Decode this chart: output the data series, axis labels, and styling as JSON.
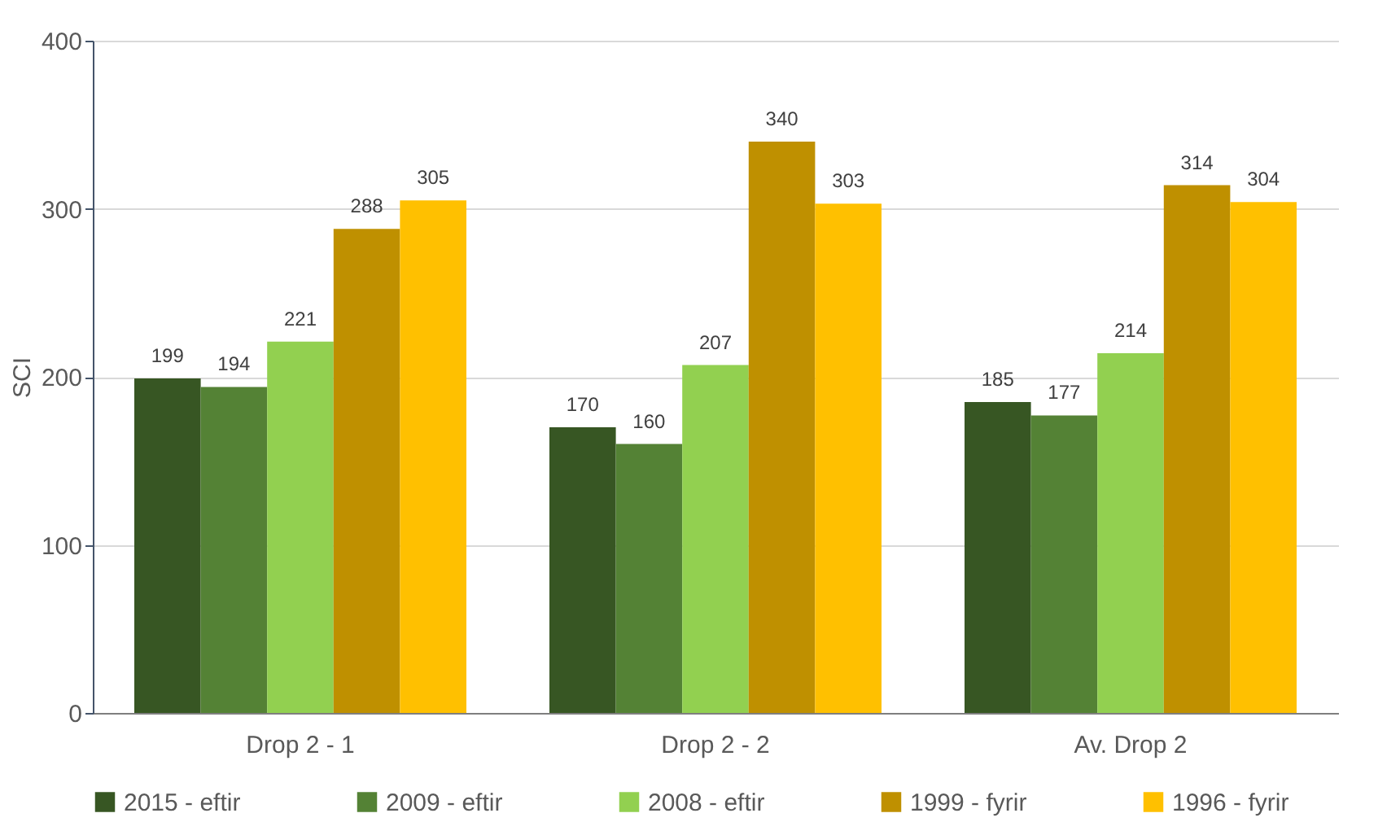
{
  "chart_data": {
    "type": "bar",
    "ylabel": "SCI",
    "categories": [
      "Drop 2 - 1",
      "Drop 2 - 2",
      "Av. Drop 2"
    ],
    "ylim": [
      0,
      400
    ],
    "yticks": [
      0,
      100,
      200,
      300,
      400
    ],
    "grid": "y",
    "legend": "bottom",
    "data_labels": true,
    "series": [
      {
        "name": "2015 - eftir",
        "color": "#375623",
        "values": [
          199,
          170,
          185
        ]
      },
      {
        "name": "2009 - eftir",
        "color": "#548235",
        "values": [
          194,
          160,
          177
        ]
      },
      {
        "name": "2008 - eftir",
        "color": "#92d050",
        "values": [
          221,
          207,
          214
        ]
      },
      {
        "name": "1999 - fyrir",
        "color": "#bf9000",
        "values": [
          288,
          340,
          314
        ]
      },
      {
        "name": "1996 - fyrir",
        "color": "#ffc000",
        "values": [
          305,
          303,
          304
        ]
      }
    ]
  }
}
